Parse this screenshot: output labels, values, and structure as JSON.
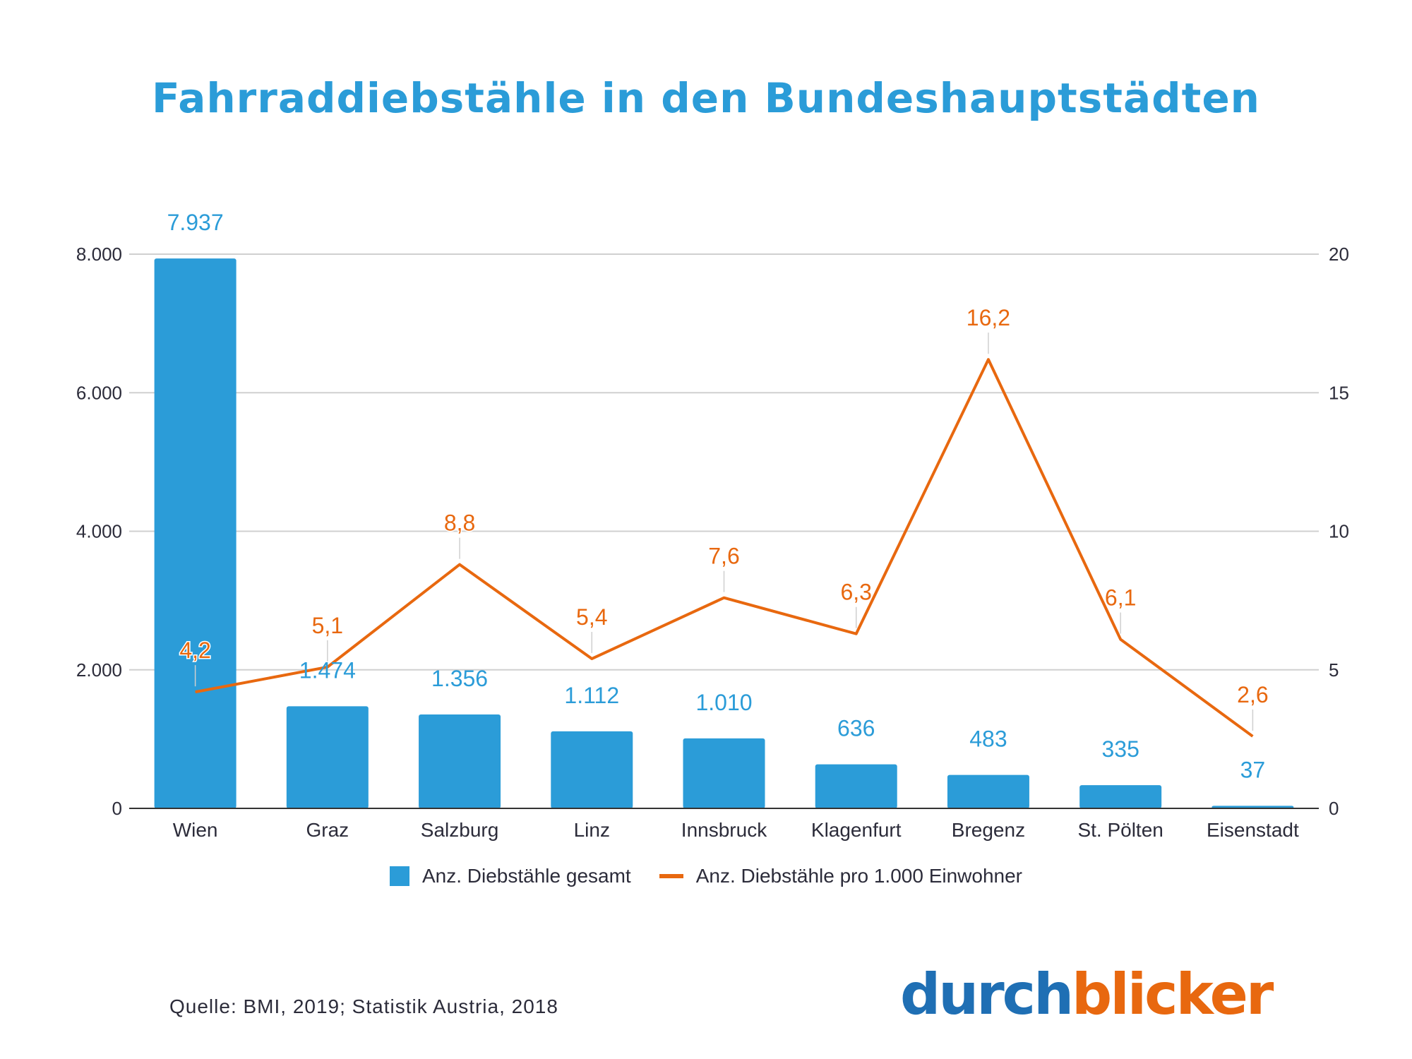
{
  "chart_data": {
    "type": "bar",
    "title": "Fahrraddiebstähle in den Bundeshauptstädten",
    "categories": [
      "Wien",
      "Graz",
      "Salzburg",
      "Linz",
      "Innsbruck",
      "Klagenfurt",
      "Bregenz",
      "St. Pölten",
      "Eisenstadt"
    ],
    "series": [
      {
        "name": "Anz. Diebstähle gesamt",
        "type": "bar",
        "axis": "left",
        "values": [
          7937,
          1474,
          1356,
          1112,
          1010,
          636,
          483,
          335,
          37
        ],
        "labels": [
          "7.937",
          "1.474",
          "1.356",
          "1.112",
          "1.010",
          "636",
          "483",
          "335",
          "37"
        ],
        "color": "#2b9cd8"
      },
      {
        "name": "Anz. Diebstähle pro 1.000 Einwohner",
        "type": "line",
        "axis": "right",
        "values": [
          4.2,
          5.1,
          8.8,
          5.4,
          7.6,
          6.3,
          16.2,
          6.1,
          2.6
        ],
        "labels": [
          "4,2",
          "5,1",
          "8,8",
          "5,4",
          "7,6",
          "6,3",
          "16,2",
          "6,1",
          "2,6"
        ],
        "color": "#e8680f"
      }
    ],
    "y_left": {
      "ylim": [
        0,
        8000
      ],
      "ticks": [
        0,
        2000,
        4000,
        6000,
        8000
      ],
      "tick_labels": [
        "0",
        "2.000",
        "4.000",
        "6.000",
        "8.000"
      ]
    },
    "y_right": {
      "ylim": [
        0,
        20
      ],
      "ticks": [
        0,
        5,
        10,
        15,
        20
      ],
      "tick_labels": [
        "0",
        "5",
        "10",
        "15",
        "20"
      ]
    },
    "xlabel": "",
    "ylabel": "",
    "grid": true,
    "legend_position": "bottom"
  },
  "source": "Quelle: BMI, 2019; Statistik Austria, 2018",
  "logo": {
    "part1": "durch",
    "part2": "blicker"
  },
  "colors": {
    "accent_blue": "#2b9cd8",
    "accent_orange": "#e8680f",
    "logo_blue": "#1f6fb4"
  }
}
